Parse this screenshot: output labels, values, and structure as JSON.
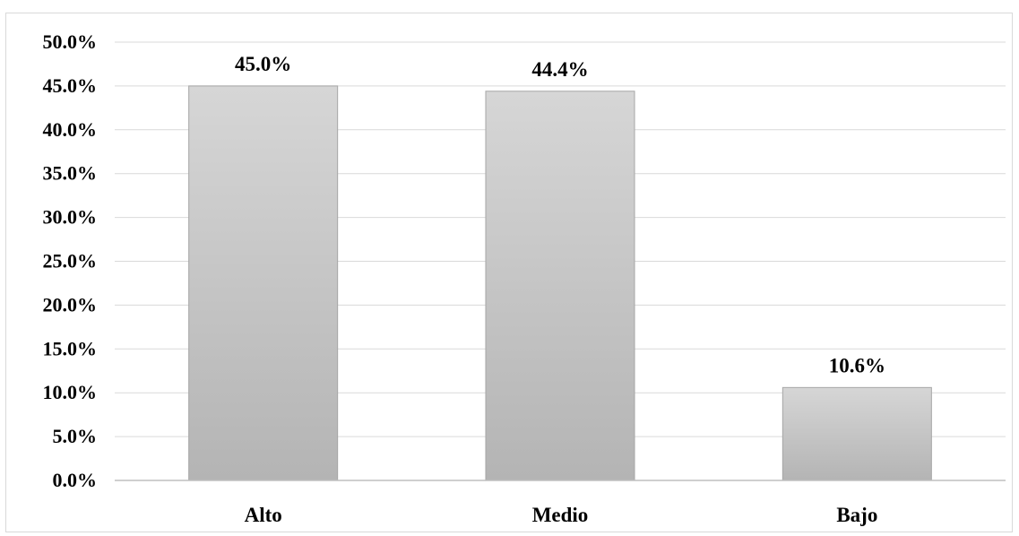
{
  "chart_data": {
    "type": "bar",
    "title": "",
    "xlabel": "",
    "ylabel": "",
    "categories": [
      "Alto",
      "Medio",
      "Bajo"
    ],
    "values": [
      45.0,
      44.4,
      10.6
    ],
    "data_labels": [
      "45.0%",
      "44.4%",
      "10.6%"
    ],
    "ylim": [
      0,
      50
    ],
    "y_ticks": [
      "0.0%",
      "5.0%",
      "10.0%",
      "15.0%",
      "20.0%",
      "25.0%",
      "30.0%",
      "35.0%",
      "40.0%",
      "45.0%",
      "50.0%"
    ],
    "grid": true,
    "legend": "none",
    "colors": {
      "bar_top": "#d6d6d6",
      "bar_bottom": "#b4b4b4",
      "bar_stroke": "#a6a6a6",
      "grid": "#d9d9d9",
      "axis": "#bfbfbf"
    }
  }
}
